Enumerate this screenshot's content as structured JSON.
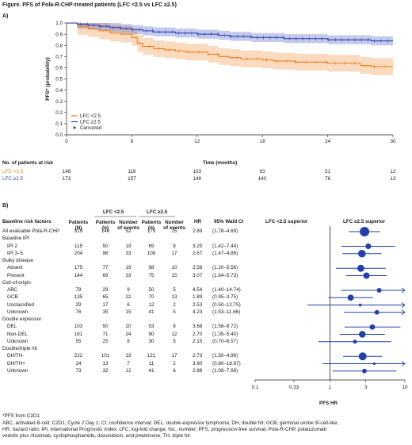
{
  "figure_title": "Figure. PFS of Pola-R-CHP-treated patients (LFC <2.5 vs LFC ≥2.5)",
  "panel_a": {
    "label": "A)",
    "y_axis_label": "PFS* (probability)",
    "x_axis_label": "Time (months)",
    "legend": [
      {
        "label": "LFC <2.5",
        "color": "#f07d1a"
      },
      {
        "label": "LFC ≥2.5",
        "color": "#2c42b5"
      },
      {
        "label": "Censored",
        "symbol": "+"
      }
    ],
    "risk_table": {
      "title": "No. of patients at risk",
      "rows": [
        {
          "label": "LFC <2.5",
          "color": "#f07d1a",
          "values": [
            "146",
            "119",
            "103",
            "93",
            "51",
            "12"
          ]
        },
        {
          "label": "LFC ≥2.5",
          "color": "#2c42b5",
          "values": [
            "173",
            "157",
            "148",
            "140",
            "76",
            "13"
          ]
        }
      ]
    }
  },
  "panel_b": {
    "label": "B)",
    "headers": {
      "factors": "Baseline risk factors",
      "group_lfc_lt": "LFC <2.5",
      "group_lfc_ge": "LFC ≥2.5",
      "patients_N": "Patients (N)",
      "patients_n_lt": "Patients (n)",
      "events_lt": "Number of events",
      "patients_n_ge": "Patients (n)",
      "events_ge": "Number of events",
      "hr": "HR",
      "ci": "95% Wald CI",
      "left_superior": "LFC <2.5 superior",
      "right_superior": "LFC ≥2.5 superior"
    },
    "x_axis_label": "PFS HR",
    "x_ticks": [
      "0.1",
      "0.33",
      "1",
      "3",
      "10"
    ]
  },
  "chart_data": [
    {
      "type": "line",
      "title": "",
      "xlabel": "Time (months)",
      "ylabel": "PFS* (probability)",
      "xlim": [
        0,
        30
      ],
      "ylim": [
        0,
        1.0
      ],
      "x_ticks": [
        0,
        6,
        12,
        18,
        24,
        30
      ],
      "y_ticks": [
        0,
        0.1,
        0.2,
        0.3,
        0.4,
        0.5,
        0.6,
        0.7,
        0.8,
        0.9,
        1.0
      ],
      "series": [
        {
          "name": "LFC <2.5",
          "color": "#f07d1a",
          "step": true,
          "x": [
            0,
            1,
            2,
            3,
            4,
            5,
            6,
            6.5,
            7,
            8,
            9,
            10,
            11,
            12,
            13,
            14,
            15,
            16,
            17,
            18,
            19,
            20,
            21,
            22,
            23,
            24,
            25,
            26,
            27,
            28,
            29,
            30
          ],
          "y": [
            1.0,
            0.97,
            0.95,
            0.93,
            0.91,
            0.9,
            0.87,
            0.82,
            0.79,
            0.77,
            0.76,
            0.75,
            0.74,
            0.74,
            0.72,
            0.7,
            0.69,
            0.68,
            0.68,
            0.67,
            0.66,
            0.66,
            0.65,
            0.65,
            0.65,
            0.64,
            0.64,
            0.64,
            0.62,
            0.61,
            0.61,
            0.61
          ]
        },
        {
          "name": "LFC ≥2.5",
          "color": "#2c42b5",
          "step": true,
          "x": [
            0,
            1,
            2,
            3,
            4,
            5,
            6,
            7,
            8,
            9,
            10,
            11,
            12,
            13,
            14,
            15,
            16,
            17,
            18,
            19,
            20,
            21,
            22,
            23,
            24,
            25,
            26,
            27,
            28,
            29,
            30
          ],
          "y": [
            1.0,
            0.99,
            0.98,
            0.97,
            0.96,
            0.95,
            0.94,
            0.93,
            0.92,
            0.92,
            0.91,
            0.91,
            0.9,
            0.9,
            0.89,
            0.88,
            0.88,
            0.87,
            0.87,
            0.87,
            0.86,
            0.86,
            0.86,
            0.86,
            0.85,
            0.85,
            0.85,
            0.85,
            0.84,
            0.84,
            0.84
          ]
        }
      ]
    },
    {
      "type": "scatter",
      "subtype": "forest",
      "xlabel": "PFS HR",
      "x_scale": "log",
      "xlim": [
        0.1,
        10
      ],
      "reference_line": 1,
      "rows": [
        {
          "label": "All evaluable Pola-R-CHP",
          "level": 0,
          "N": "319",
          "n_lt": "146",
          "ev_lt": "52",
          "n_ge": "173",
          "ev_ge": "25",
          "hr": 2.89,
          "lo": 1.78,
          "hi": 4.69,
          "hr_text": "2.89",
          "ci_text": "(1.78–4.69)"
        },
        {
          "label": "Baseline IPI",
          "level": 0,
          "header": true
        },
        {
          "label": "IPI 2",
          "level": 1,
          "N": "115",
          "n_lt": "50",
          "ev_lt": "19",
          "n_ge": "65",
          "ev_ge": "8",
          "hr": 3.25,
          "lo": 1.42,
          "hi": 7.44,
          "hr_text": "3.25",
          "ci_text": "(1.42–7.44)"
        },
        {
          "label": "IPI 3–5",
          "level": 1,
          "N": "204",
          "n_lt": "96",
          "ev_lt": "33",
          "n_ge": "108",
          "ev_ge": "17",
          "hr": 2.67,
          "lo": 1.47,
          "hi": 4.86,
          "hr_text": "2.67",
          "ci_text": "(1.47–4.86)"
        },
        {
          "label": "Bulky disease",
          "level": 0,
          "header": true
        },
        {
          "label": "Absent",
          "level": 1,
          "N": "175",
          "n_lt": "77",
          "ev_lt": "19",
          "n_ge": "98",
          "ev_ge": "10",
          "hr": 2.58,
          "lo": 1.2,
          "hi": 5.56,
          "hr_text": "2.58",
          "ci_text": "(1.20–5.56)"
        },
        {
          "label": "Present",
          "level": 1,
          "N": "144",
          "n_lt": "69",
          "ev_lt": "33",
          "n_ge": "75",
          "ev_ge": "15",
          "hr": 3.07,
          "lo": 1.64,
          "hi": 5.73,
          "hr_text": "3.07",
          "ci_text": "(1.64–5.73)"
        },
        {
          "label": "Cell-of-origin",
          "level": 0,
          "header": true
        },
        {
          "label": "ABC",
          "level": 1,
          "N": "79",
          "n_lt": "29",
          "ev_lt": "9",
          "n_ge": "50",
          "ev_ge": "5",
          "hr": 4.54,
          "lo": 1.4,
          "hi": 14.74,
          "hr_text": "4.54",
          "ci_text": "(1.40–14.74)"
        },
        {
          "label": "GCB",
          "level": 1,
          "N": "135",
          "n_lt": "65",
          "ev_lt": "22",
          "n_ge": "70",
          "ev_ge": "13",
          "hr": 1.89,
          "lo": 0.95,
          "hi": 3.75,
          "hr_text": "1.89",
          "ci_text": "(0.95–3.75)"
        },
        {
          "label": "Unclassified",
          "level": 1,
          "N": "29",
          "n_lt": "17",
          "ev_lt": "6",
          "n_ge": "12",
          "ev_ge": "2",
          "hr": 2.53,
          "lo": 0.5,
          "hi": 12.75,
          "hr_text": "2.53",
          "ci_text": "(0.50–12.75)"
        },
        {
          "label": "Unknown",
          "level": 1,
          "N": "76",
          "n_lt": "35",
          "ev_lt": "15",
          "n_ge": "41",
          "ev_ge": "5",
          "hr": 4.23,
          "lo": 1.53,
          "hi": 11.66,
          "hr_text": "4.23",
          "ci_text": "(1.53–11.66)"
        },
        {
          "label": "Double expressor",
          "level": 0,
          "header": true
        },
        {
          "label": "DEL",
          "level": 1,
          "N": "103",
          "n_lt": "50",
          "ev_lt": "20",
          "n_ge": "53",
          "ev_ge": "8",
          "hr": 3.68,
          "lo": 1.56,
          "hi": 8.72,
          "hr_text": "3.68",
          "ci_text": "(1.56–8.72)"
        },
        {
          "label": "Non-DEL",
          "level": 1,
          "N": "161",
          "n_lt": "71",
          "ev_lt": "24",
          "n_ge": "90",
          "ev_ge": "12",
          "hr": 2.7,
          "lo": 1.35,
          "hi": 5.4,
          "hr_text": "2.70",
          "ci_text": "(1.35–5.40)"
        },
        {
          "label": "Unknown",
          "level": 1,
          "N": "55",
          "n_lt": "25",
          "ev_lt": "8",
          "n_ge": "30",
          "ev_ge": "5",
          "hr": 2.15,
          "lo": 0.7,
          "hi": 6.57,
          "hr_text": "2.15",
          "ci_text": "(0.70–6.57)"
        },
        {
          "label": "Double/triple hit",
          "level": 0,
          "header": true
        },
        {
          "label": "DH/TH-",
          "level": 1,
          "N": "222",
          "n_lt": "101",
          "ev_lt": "33",
          "n_ge": "121",
          "ev_ge": "17",
          "hr": 2.73,
          "lo": 1.5,
          "hi": 4.96,
          "hr_text": "2.73",
          "ci_text": "(1.50–4.96)"
        },
        {
          "label": "DH/TH+",
          "level": 1,
          "N": "24",
          "n_lt": "13",
          "ev_lt": "7",
          "n_ge": "11",
          "ev_ge": "2",
          "hr": 3.9,
          "lo": 0.8,
          "hi": 18.97,
          "hr_text": "3.90",
          "ci_text": "(0.80–18.97)"
        },
        {
          "label": "Unknown",
          "level": 1,
          "N": "73",
          "n_lt": "32",
          "ev_lt": "12",
          "n_ge": "41",
          "ev_ge": "6",
          "hr": 2.88,
          "lo": 1.08,
          "hi": 7.68,
          "hr_text": "2.88",
          "ci_text": "(1.08–7.68)"
        }
      ]
    }
  ],
  "footnotes": [
    "*PFS from C2D1",
    "ABC, activated B-cell; C2D1, Cycle 2 Day 1; CI, confidence interval; DEL, double-expressor lymphoma; DH, double hit; GCB, germinal center B-cell-like;",
    "HR, hazard ratio; IPI, International Prognostic Index; LFC, log-fold change; No., number; PFS, progression-free survival; Pola-R-CHP, polatuzumab",
    "vedotin plus rituximab, cyclophosphamide, doxorubicin, and prednisone; TH, triple hit"
  ]
}
